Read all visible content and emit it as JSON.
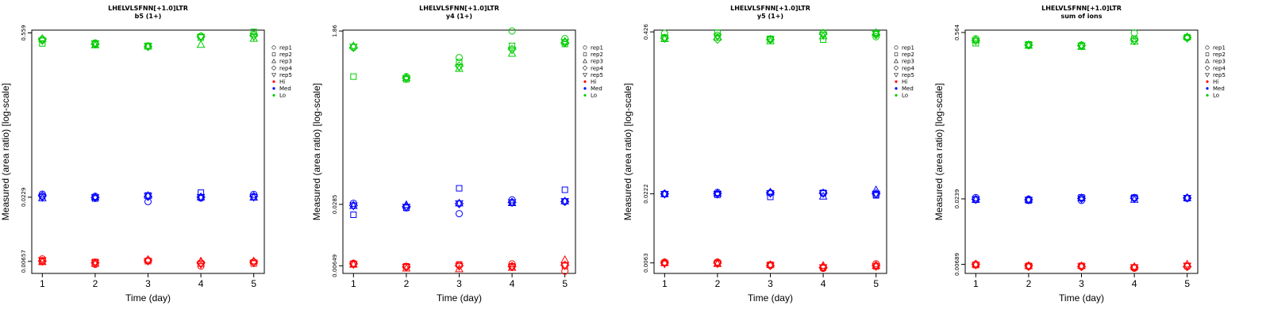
{
  "layout_note": "",
  "colors": {
    "Hi": "#ff0000",
    "Med": "#0000ff",
    "Lo": "#00cc00"
  },
  "legend": {
    "replicates": [
      {
        "label": "rep1",
        "marker": "circle"
      },
      {
        "label": "rep2",
        "marker": "square"
      },
      {
        "label": "rep3",
        "marker": "triangle-up"
      },
      {
        "label": "rep4",
        "marker": "diamond"
      },
      {
        "label": "rep5",
        "marker": "triangle-down"
      }
    ],
    "groups": [
      {
        "label": "Hi",
        "color": "#ff0000"
      },
      {
        "label": "Med",
        "color": "#0000ff"
      },
      {
        "label": "Lo",
        "color": "#00cc00"
      }
    ]
  },
  "chart_data": [
    {
      "type": "scatter",
      "title": "LHELVLSFNN[+1.0]LTR",
      "subtitle": "b5 (1+)",
      "xlabel": "Time (day)",
      "ylabel": "Measured (area ratio) [log-scale]",
      "yscale": "log",
      "x": [
        1,
        2,
        3,
        4,
        5
      ],
      "xlim": [
        0.8,
        5.2
      ],
      "ylim": [
        0.0052,
        0.59
      ],
      "yticks": [
        {
          "value": 0.00657,
          "label": "0.00657"
        },
        {
          "value": 0.0229,
          "label": "0.0229"
        },
        {
          "value": 0.559,
          "label": "0.559"
        }
      ],
      "grid": false,
      "legend_position": "right",
      "series": [
        {
          "group": "Lo",
          "rep": "rep1",
          "values": [
            0.485,
            0.46,
            0.43,
            0.525,
            0.545
          ]
        },
        {
          "group": "Lo",
          "rep": "rep2",
          "values": [
            0.455,
            0.445,
            0.435,
            0.51,
            0.57
          ]
        },
        {
          "group": "Lo",
          "rep": "rep3",
          "values": [
            0.5,
            0.44,
            0.43,
            0.445,
            0.5
          ]
        },
        {
          "group": "Lo",
          "rep": "rep4",
          "values": [
            0.495,
            0.45,
            0.428,
            0.52,
            0.53
          ]
        },
        {
          "group": "Lo",
          "rep": "rep5",
          "values": [
            0.48,
            0.455,
            0.432,
            0.515,
            0.52
          ]
        },
        {
          "group": "Med",
          "rep": "rep1",
          "values": [
            0.0243,
            0.0233,
            0.021,
            0.0225,
            0.0242
          ]
        },
        {
          "group": "Med",
          "rep": "rep2",
          "values": [
            0.0233,
            0.0223,
            0.0237,
            0.025,
            0.023
          ]
        },
        {
          "group": "Med",
          "rep": "rep3",
          "values": [
            0.0225,
            0.0229,
            0.0236,
            0.0229,
            0.0228
          ]
        },
        {
          "group": "Med",
          "rep": "rep4",
          "values": [
            0.0235,
            0.0227,
            0.0232,
            0.0229,
            0.0233
          ]
        },
        {
          "group": "Med",
          "rep": "rep5",
          "values": [
            0.0228,
            0.0228,
            0.0234,
            0.0229,
            0.0229
          ]
        },
        {
          "group": "Hi",
          "rep": "rep1",
          "values": [
            0.0069,
            0.0062,
            0.0067,
            0.006,
            0.0065
          ]
        },
        {
          "group": "Hi",
          "rep": "rep2",
          "values": [
            0.0066,
            0.0065,
            0.0066,
            0.0063,
            0.0063
          ]
        },
        {
          "group": "Hi",
          "rep": "rep3",
          "values": [
            0.0065,
            0.0063,
            0.0068,
            0.0066,
            0.0066
          ]
        },
        {
          "group": "Hi",
          "rep": "rep4",
          "values": [
            0.0066,
            0.0064,
            0.0067,
            0.0064,
            0.0065
          ]
        },
        {
          "group": "Hi",
          "rep": "rep5",
          "values": [
            0.0067,
            0.0064,
            0.0066,
            0.0062,
            0.0064
          ]
        }
      ]
    },
    {
      "type": "scatter",
      "title": "LHELVLSFNN[+1.0]LTR",
      "subtitle": "y4 (1+)",
      "xlabel": "Time (day)",
      "ylabel": "Measured (area ratio) [log-scale]",
      "yscale": "log",
      "x": [
        1,
        2,
        3,
        4,
        5
      ],
      "xlim": [
        0.8,
        5.2
      ],
      "ylim": [
        0.0054,
        1.9
      ],
      "yticks": [
        {
          "value": 0.00649,
          "label": "0.00649"
        },
        {
          "value": 0.0285,
          "label": "0.0285"
        },
        {
          "value": 1.86,
          "label": "1.86"
        }
      ],
      "grid": false,
      "legend_position": "right",
      "series": [
        {
          "group": "Lo",
          "rep": "rep1",
          "values": [
            1.25,
            0.62,
            0.98,
            1.86,
            1.55
          ]
        },
        {
          "group": "Lo",
          "rep": "rep2",
          "values": [
            0.62,
            0.58,
            0.88,
            1.3,
            1.36
          ]
        },
        {
          "group": "Lo",
          "rep": "rep3",
          "values": [
            1.3,
            0.6,
            0.75,
            1.08,
            1.45
          ]
        },
        {
          "group": "Lo",
          "rep": "rep4",
          "values": [
            1.25,
            0.6,
            0.8,
            1.2,
            1.4
          ]
        },
        {
          "group": "Lo",
          "rep": "rep5",
          "values": [
            1.27,
            0.59,
            0.78,
            1.18,
            1.42
          ]
        },
        {
          "group": "Med",
          "rep": "rep1",
          "values": [
            0.0293,
            0.0262,
            0.0228,
            0.0318,
            0.0305
          ]
        },
        {
          "group": "Med",
          "rep": "rep2",
          "values": [
            0.0222,
            0.0262,
            0.042,
            0.0298,
            0.0405
          ]
        },
        {
          "group": "Med",
          "rep": "rep3",
          "values": [
            0.0275,
            0.0282,
            0.0293,
            0.0295,
            0.0308
          ]
        },
        {
          "group": "Med",
          "rep": "rep4",
          "values": [
            0.0278,
            0.027,
            0.029,
            0.03,
            0.0305
          ]
        },
        {
          "group": "Med",
          "rep": "rep5",
          "values": [
            0.0276,
            0.0268,
            0.0292,
            0.0298,
            0.0307
          ]
        },
        {
          "group": "Hi",
          "rep": "rep1",
          "values": [
            0.0069,
            0.0064,
            0.0066,
            0.0068,
            0.0057
          ]
        },
        {
          "group": "Hi",
          "rep": "rep2",
          "values": [
            0.0068,
            0.0064,
            0.0067,
            0.0064,
            0.0065
          ]
        },
        {
          "group": "Hi",
          "rep": "rep3",
          "values": [
            0.0067,
            0.0061,
            0.006,
            0.0062,
            0.0075
          ]
        },
        {
          "group": "Hi",
          "rep": "rep4",
          "values": [
            0.0068,
            0.0063,
            0.0065,
            0.0064,
            0.0066
          ]
        },
        {
          "group": "Hi",
          "rep": "rep5",
          "values": [
            0.0067,
            0.0063,
            0.0064,
            0.0063,
            0.0065
          ]
        }
      ]
    },
    {
      "type": "scatter",
      "title": "LHELVLSFNN[+1.0]LTR",
      "subtitle": "y5 (1+)",
      "xlabel": "Time (day)",
      "ylabel": "Measured (area ratio) [log-scale]",
      "yscale": "log",
      "x": [
        1,
        2,
        3,
        4,
        5
      ],
      "xlim": [
        0.8,
        5.2
      ],
      "ylim": [
        0.0052,
        0.44
      ],
      "yticks": [
        {
          "value": 0.0063,
          "label": "0.0063"
        },
        {
          "value": 0.0222,
          "label": "0.0222"
        },
        {
          "value": 0.426,
          "label": "0.426"
        }
      ],
      "grid": false,
      "legend_position": "right",
      "series": [
        {
          "group": "Lo",
          "rep": "rep1",
          "values": [
            0.415,
            0.4,
            0.375,
            0.42,
            0.39
          ]
        },
        {
          "group": "Lo",
          "rep": "rep2",
          "values": [
            0.385,
            0.42,
            0.375,
            0.37,
            0.415
          ]
        },
        {
          "group": "Lo",
          "rep": "rep3",
          "values": [
            0.375,
            0.385,
            0.36,
            0.395,
            0.42
          ]
        },
        {
          "group": "Lo",
          "rep": "rep4",
          "values": [
            0.38,
            0.372,
            0.37,
            0.41,
            0.405
          ]
        },
        {
          "group": "Lo",
          "rep": "rep5",
          "values": [
            0.378,
            0.39,
            0.372,
            0.4,
            0.41
          ]
        },
        {
          "group": "Med",
          "rep": "rep1",
          "values": [
            0.0222,
            0.0228,
            0.0226,
            0.0225,
            0.0218
          ]
        },
        {
          "group": "Med",
          "rep": "rep2",
          "values": [
            0.0221,
            0.0218,
            0.021,
            0.0226,
            0.0216
          ]
        },
        {
          "group": "Med",
          "rep": "rep3",
          "values": [
            0.0222,
            0.0224,
            0.0229,
            0.0212,
            0.0238
          ]
        },
        {
          "group": "Med",
          "rep": "rep4",
          "values": [
            0.0222,
            0.0223,
            0.0226,
            0.0225,
            0.0223
          ]
        },
        {
          "group": "Med",
          "rep": "rep5",
          "values": [
            0.0221,
            0.0221,
            0.0224,
            0.0224,
            0.0222
          ]
        },
        {
          "group": "Hi",
          "rep": "rep1",
          "values": [
            0.0064,
            0.0064,
            0.006,
            0.0057,
            0.0062
          ]
        },
        {
          "group": "Hi",
          "rep": "rep2",
          "values": [
            0.0063,
            0.0063,
            0.0061,
            0.0058,
            0.0059
          ]
        },
        {
          "group": "Hi",
          "rep": "rep3",
          "values": [
            0.0063,
            0.0062,
            0.0061,
            0.006,
            0.006
          ]
        },
        {
          "group": "Hi",
          "rep": "rep4",
          "values": [
            0.0063,
            0.0063,
            0.006,
            0.0058,
            0.006
          ]
        },
        {
          "group": "Hi",
          "rep": "rep5",
          "values": [
            0.0062,
            0.0062,
            0.006,
            0.0058,
            0.0059
          ]
        }
      ]
    },
    {
      "type": "scatter",
      "title": "LHELVLSFNN[+1.0]LTR",
      "subtitle": "sum of ions",
      "xlabel": "Time (day)",
      "ylabel": "Measured (area ratio) [log-scale]",
      "yscale": "log",
      "x": [
        1,
        2,
        3,
        4,
        5
      ],
      "xlim": [
        0.8,
        5.2
      ],
      "ylim": [
        0.0058,
        0.59
      ],
      "yticks": [
        {
          "value": 0.00689,
          "label": "0.00689"
        },
        {
          "value": 0.0239,
          "label": "0.0239"
        },
        {
          "value": 0.564,
          "label": "0.564"
        }
      ],
      "grid": false,
      "legend_position": "right",
      "series": [
        {
          "group": "Lo",
          "rep": "rep1",
          "values": [
            0.5,
            0.44,
            0.445,
            0.56,
            0.51
          ]
        },
        {
          "group": "Lo",
          "rep": "rep2",
          "values": [
            0.46,
            0.45,
            0.435,
            0.5,
            0.515
          ]
        },
        {
          "group": "Lo",
          "rep": "rep3",
          "values": [
            0.49,
            0.44,
            0.43,
            0.475,
            0.52
          ]
        },
        {
          "group": "Lo",
          "rep": "rep4",
          "values": [
            0.485,
            0.445,
            0.44,
            0.49,
            0.51
          ]
        },
        {
          "group": "Lo",
          "rep": "rep5",
          "values": [
            0.48,
            0.445,
            0.438,
            0.48,
            0.505
          ]
        },
        {
          "group": "Med",
          "rep": "rep1",
          "values": [
            0.0245,
            0.0238,
            0.0232,
            0.0245,
            0.0242
          ]
        },
        {
          "group": "Med",
          "rep": "rep2",
          "values": [
            0.0235,
            0.0232,
            0.0246,
            0.0245,
            0.0242
          ]
        },
        {
          "group": "Med",
          "rep": "rep3",
          "values": [
            0.0236,
            0.0236,
            0.0243,
            0.0236,
            0.0244
          ]
        },
        {
          "group": "Med",
          "rep": "rep4",
          "values": [
            0.0237,
            0.0235,
            0.0241,
            0.0242,
            0.0243
          ]
        },
        {
          "group": "Med",
          "rep": "rep5",
          "values": [
            0.0236,
            0.0234,
            0.024,
            0.024,
            0.0243
          ]
        },
        {
          "group": "Hi",
          "rep": "rep1",
          "values": [
            0.0069,
            0.0066,
            0.0066,
            0.0064,
            0.0066
          ]
        },
        {
          "group": "Hi",
          "rep": "rep2",
          "values": [
            0.0068,
            0.0067,
            0.0067,
            0.0065,
            0.0067
          ]
        },
        {
          "group": "Hi",
          "rep": "rep3",
          "values": [
            0.0069,
            0.0067,
            0.0067,
            0.0066,
            0.0069
          ]
        },
        {
          "group": "Hi",
          "rep": "rep4",
          "values": [
            0.0069,
            0.0067,
            0.0066,
            0.0065,
            0.0066
          ]
        },
        {
          "group": "Hi",
          "rep": "rep5",
          "values": [
            0.0068,
            0.0066,
            0.0066,
            0.0065,
            0.0067
          ]
        }
      ]
    }
  ]
}
